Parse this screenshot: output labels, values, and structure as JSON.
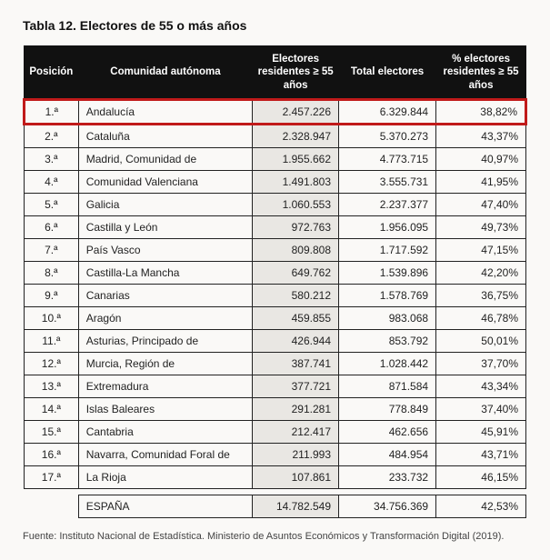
{
  "title": "Tabla 12. Electores de 55 o más años",
  "columns": {
    "pos": "Posición",
    "name": "Comunidad autónoma",
    "e55": "Electores residentes ≥ 55 años",
    "tot": "Total electores",
    "pct": "% electores residentes ≥ 55 años"
  },
  "rows": [
    {
      "pos": "1.ª",
      "name": "Andalucía",
      "e55": "2.457.226",
      "tot": "6.329.844",
      "pct": "38,82%",
      "hl": true
    },
    {
      "pos": "2.ª",
      "name": "Cataluña",
      "e55": "2.328.947",
      "tot": "5.370.273",
      "pct": "43,37%"
    },
    {
      "pos": "3.ª",
      "name": "Madrid, Comunidad de",
      "e55": "1.955.662",
      "tot": "4.773.715",
      "pct": "40,97%"
    },
    {
      "pos": "4.ª",
      "name": "Comunidad Valenciana",
      "e55": "1.491.803",
      "tot": "3.555.731",
      "pct": "41,95%"
    },
    {
      "pos": "5.ª",
      "name": "Galicia",
      "e55": "1.060.553",
      "tot": "2.237.377",
      "pct": "47,40%"
    },
    {
      "pos": "6.ª",
      "name": "Castilla y León",
      "e55": "972.763",
      "tot": "1.956.095",
      "pct": "49,73%"
    },
    {
      "pos": "7.ª",
      "name": "País Vasco",
      "e55": "809.808",
      "tot": "1.717.592",
      "pct": "47,15%"
    },
    {
      "pos": "8.ª",
      "name": "Castilla-La Mancha",
      "e55": "649.762",
      "tot": "1.539.896",
      "pct": "42,20%"
    },
    {
      "pos": "9.ª",
      "name": "Canarias",
      "e55": "580.212",
      "tot": "1.578.769",
      "pct": "36,75%"
    },
    {
      "pos": "10.ª",
      "name": "Aragón",
      "e55": "459.855",
      "tot": "983.068",
      "pct": "46,78%"
    },
    {
      "pos": "11.ª",
      "name": "Asturias, Principado de",
      "e55": "426.944",
      "tot": "853.792",
      "pct": "50,01%"
    },
    {
      "pos": "12.ª",
      "name": "Murcia, Región de",
      "e55": "387.741",
      "tot": "1.028.442",
      "pct": "37,70%"
    },
    {
      "pos": "13.ª",
      "name": "Extremadura",
      "e55": "377.721",
      "tot": "871.584",
      "pct": "43,34%"
    },
    {
      "pos": "14.ª",
      "name": "Islas Baleares",
      "e55": "291.281",
      "tot": "778.849",
      "pct": "37,40%"
    },
    {
      "pos": "15.ª",
      "name": "Cantabria",
      "e55": "212.417",
      "tot": "462.656",
      "pct": "45,91%"
    },
    {
      "pos": "16.ª",
      "name": "Navarra, Comunidad Foral de",
      "e55": "211.993",
      "tot": "484.954",
      "pct": "43,71%"
    },
    {
      "pos": "17.ª",
      "name": "La Rioja",
      "e55": "107.861",
      "tot": "233.732",
      "pct": "46,15%"
    }
  ],
  "total": {
    "name": "ESPAÑA",
    "e55": "14.782.549",
    "tot": "34.756.369",
    "pct": "42,53%"
  },
  "footnote": "Fuente: Instituto Nacional de Estadística. Ministerio de Asuntos Económicos y Transformación Digital (2019)."
}
